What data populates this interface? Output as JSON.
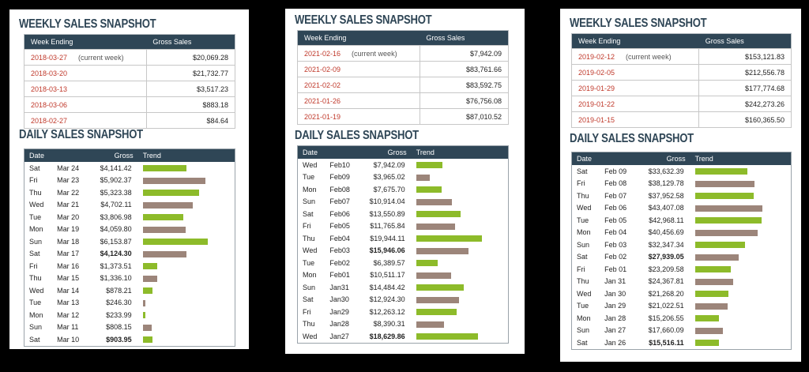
{
  "colors": {
    "header": "#2f4656",
    "date": "#c0392b",
    "bar_green": "#8dbb2a",
    "bar_brown": "#9c857a"
  },
  "panels": [
    {
      "weekly_title": "WEEKLY SALES SNAPSHOT",
      "weekly_headers": [
        "Week Ending",
        "Gross Sales"
      ],
      "weekly": [
        {
          "date": "2018-03-27",
          "note": "(current week)",
          "amount": "$20,069.28"
        },
        {
          "date": "2018-03-20",
          "note": "",
          "amount": "$21,732.77"
        },
        {
          "date": "2018-03-13",
          "note": "",
          "amount": "$3,517.23"
        },
        {
          "date": "2018-03-06",
          "note": "",
          "amount": "$883.18"
        },
        {
          "date": "2018-02-27",
          "note": "",
          "amount": "$84.64"
        }
      ],
      "daily_title": "DAILY SALES SNAPSHOT",
      "daily_headers": [
        "Date",
        "Gross",
        "Trend"
      ],
      "daily": [
        {
          "day": "Sat",
          "date": "Mar 24",
          "gross": "$4,141.42",
          "value": 4141.42
        },
        {
          "day": "Fri",
          "date": "Mar 23",
          "gross": "$5,902.37",
          "value": 5902.37
        },
        {
          "day": "Thu",
          "date": "Mar 22",
          "gross": "$5,323.38",
          "value": 5323.38
        },
        {
          "day": "Wed",
          "date": "Mar 21",
          "gross": "$4,702.11",
          "value": 4702.11
        },
        {
          "day": "Tue",
          "date": "Mar 20",
          "gross": "$3,806.98",
          "value": 3806.98
        },
        {
          "day": "Mon",
          "date": "Mar 19",
          "gross": "$4,059.80",
          "value": 4059.8
        },
        {
          "day": "Sun",
          "date": "Mar 18",
          "gross": "$6,153.87",
          "value": 6153.87
        },
        {
          "day": "Sat",
          "date": "Mar 17",
          "gross": "$4,124.30",
          "value": 4124.3,
          "bold": true
        },
        {
          "day": "Fri",
          "date": "Mar 16",
          "gross": "$1,373.51",
          "value": 1373.51
        },
        {
          "day": "Thu",
          "date": "Mar 15",
          "gross": "$1,336.10",
          "value": 1336.1
        },
        {
          "day": "Wed",
          "date": "Mar 14",
          "gross": "$878.21",
          "value": 878.21
        },
        {
          "day": "Tue",
          "date": "Mar 13",
          "gross": "$246.30",
          "value": 246.3
        },
        {
          "day": "Mon",
          "date": "Mar 12",
          "gross": "$233.99",
          "value": 233.99
        },
        {
          "day": "Sun",
          "date": "Mar 11",
          "gross": "$808.15",
          "value": 808.15
        },
        {
          "day": "Sat",
          "date": "Mar 10",
          "gross": "$903.95",
          "value": 903.95,
          "bold": true
        }
      ]
    },
    {
      "weekly_title": "WEEKLY SALES SNAPSHOT",
      "weekly_headers": [
        "Week Ending",
        "Gross Sales"
      ],
      "weekly": [
        {
          "date": "2021-02-16",
          "note": "(current week)",
          "amount": "$7,942.09"
        },
        {
          "date": "2021-02-09",
          "note": "",
          "amount": "$83,761.66"
        },
        {
          "date": "2021-02-02",
          "note": "",
          "amount": "$83,592.75"
        },
        {
          "date": "2021-01-26",
          "note": "",
          "amount": "$76,756.08"
        },
        {
          "date": "2021-01-19",
          "note": "",
          "amount": "$87,010.52"
        }
      ],
      "daily_title": "DAILY SALES SNAPSHOT",
      "daily_headers": [
        "Date",
        "Gross",
        "Trend"
      ],
      "daily": [
        {
          "day": "Wed",
          "date": "Feb10",
          "gross": "$7,942.09",
          "value": 7942.09
        },
        {
          "day": "Tue",
          "date": "Feb09",
          "gross": "$3,965.02",
          "value": 3965.02
        },
        {
          "day": "Mon",
          "date": "Feb08",
          "gross": "$7,675.70",
          "value": 7675.7
        },
        {
          "day": "Sun",
          "date": "Feb07",
          "gross": "$10,914.04",
          "value": 10914.04
        },
        {
          "day": "Sat",
          "date": "Feb06",
          "gross": "$13,550.89",
          "value": 13550.89
        },
        {
          "day": "Fri",
          "date": "Feb05",
          "gross": "$11,765.84",
          "value": 11765.84
        },
        {
          "day": "Thu",
          "date": "Feb04",
          "gross": "$19,944.11",
          "value": 19944.11
        },
        {
          "day": "Wed",
          "date": "Feb03",
          "gross": "$15,946.06",
          "value": 15946.06,
          "bold": true
        },
        {
          "day": "Tue",
          "date": "Feb02",
          "gross": "$6,389.57",
          "value": 6389.57
        },
        {
          "day": "Mon",
          "date": "Feb01",
          "gross": "$10,511.17",
          "value": 10511.17
        },
        {
          "day": "Sun",
          "date": "Jan31",
          "gross": "$14,484.42",
          "value": 14484.42
        },
        {
          "day": "Sat",
          "date": "Jan30",
          "gross": "$12,924.30",
          "value": 12924.3
        },
        {
          "day": "Fri",
          "date": "Jan29",
          "gross": "$12,263.12",
          "value": 12263.12
        },
        {
          "day": "Thu",
          "date": "Jan28",
          "gross": "$8,390.31",
          "value": 8390.31
        },
        {
          "day": "Wed",
          "date": "Jan27",
          "gross": "$18,629.86",
          "value": 18629.86,
          "bold": true
        }
      ]
    },
    {
      "weekly_title": "WEEKLY SALES SNAPSHOT",
      "weekly_headers": [
        "Week Ending",
        "Gross Sales"
      ],
      "weekly": [
        {
          "date": "2019-02-12",
          "note": "(current week)",
          "amount": "$153,121.83"
        },
        {
          "date": "2019-02-05",
          "note": "",
          "amount": "$212,556.78"
        },
        {
          "date": "2019-01-29",
          "note": "",
          "amount": "$177,774.68"
        },
        {
          "date": "2019-01-22",
          "note": "",
          "amount": "$242,273.26"
        },
        {
          "date": "2019-01-15",
          "note": "",
          "amount": "$160,365.50"
        }
      ],
      "daily_title": "DAILY SALES SNAPSHOT",
      "daily_headers": [
        "Date",
        "Gross",
        "Trend"
      ],
      "daily": [
        {
          "day": "Sat",
          "date": "Feb 09",
          "gross": "$33,632.39",
          "value": 33632.39
        },
        {
          "day": "Fri",
          "date": "Feb 08",
          "gross": "$38,129.78",
          "value": 38129.78
        },
        {
          "day": "Thu",
          "date": "Feb 07",
          "gross": "$37,952.58",
          "value": 37952.58
        },
        {
          "day": "Wed",
          "date": "Feb 06",
          "gross": "$43,407.08",
          "value": 43407.08
        },
        {
          "day": "Tue",
          "date": "Feb 05",
          "gross": "$42,968.11",
          "value": 42968.11
        },
        {
          "day": "Mon",
          "date": "Feb 04",
          "gross": "$40,456.69",
          "value": 40456.69
        },
        {
          "day": "Sun",
          "date": "Feb 03",
          "gross": "$32,347.34",
          "value": 32347.34
        },
        {
          "day": "Sat",
          "date": "Feb 02",
          "gross": "$27,939.05",
          "value": 27939.05,
          "bold": true
        },
        {
          "day": "Fri",
          "date": "Feb 01",
          "gross": "$23,209.58",
          "value": 23209.58
        },
        {
          "day": "Thu",
          "date": "Jan 31",
          "gross": "$24,367.81",
          "value": 24367.81
        },
        {
          "day": "Wed",
          "date": "Jan 30",
          "gross": "$21,268.20",
          "value": 21268.2
        },
        {
          "day": "Tue",
          "date": "Jan 29",
          "gross": "$21,022.51",
          "value": 21022.51
        },
        {
          "day": "Mon",
          "date": "Jan 28",
          "gross": "$15,206.55",
          "value": 15206.55
        },
        {
          "day": "Sun",
          "date": "Jan 27",
          "gross": "$17,660.09",
          "value": 17660.09
        },
        {
          "day": "Sat",
          "date": "Jan 26",
          "gross": "$15,516.11",
          "value": 15516.11,
          "bold": true
        }
      ]
    }
  ]
}
